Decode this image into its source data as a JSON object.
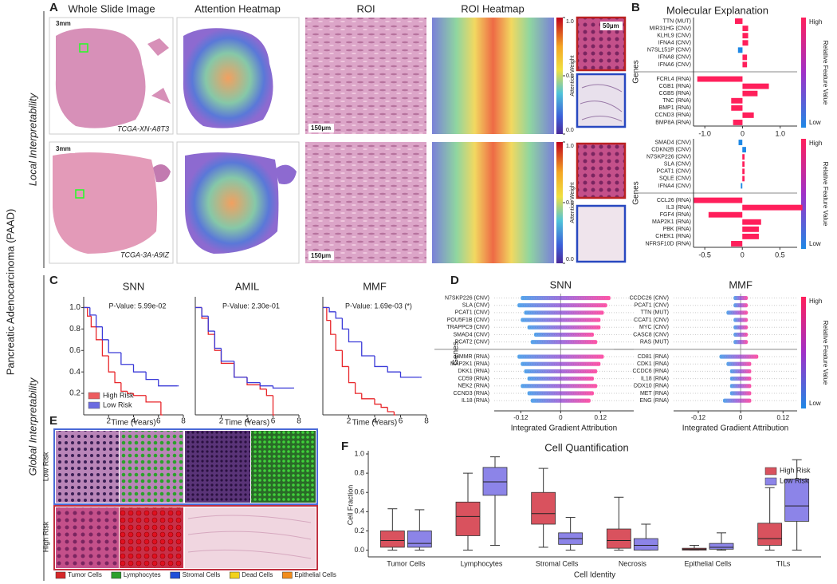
{
  "figure": {
    "side_title": "Pancreatic Adenocarcinoma (PAAD)",
    "local": "Local Interpretability",
    "global": "Global Interpretability",
    "panel_labels": [
      "A",
      "B",
      "C",
      "D",
      "E",
      "F"
    ],
    "a": {
      "columns": [
        "Whole Slide Image",
        "Attention Heatmap",
        "ROI",
        "ROI Heatmap"
      ],
      "scale_wsi": "3mm",
      "scale_roi": "150µm",
      "scale_zoom": "50µm",
      "samples": [
        "TCGA-XN-A8T3",
        "TCGA-3A-A9IZ"
      ],
      "colorbar_label": "Attention Weight",
      "colorbar_ticks": [
        {
          "value": 1,
          "label": "1.0"
        },
        {
          "value": 0.5,
          "label": "0.5"
        },
        {
          "value": 0,
          "label": "0.0"
        }
      ]
    },
    "b_title": "Molecular Explanation",
    "feature_legend": {
      "title": "Relative Feature Value",
      "high": "High",
      "low": "Low"
    },
    "genes_label": "Genes",
    "e": {
      "rows": [
        "Low Risk",
        "High Risk"
      ],
      "legend": [
        {
          "name": "Tumor Cells",
          "color": "#d62728"
        },
        {
          "name": "Lymphocytes",
          "color": "#2ca02c"
        },
        {
          "name": "Stromal Cells",
          "color": "#1f4fd8"
        },
        {
          "name": "Dead Cells",
          "color": "#f2d21b"
        },
        {
          "name": "Epithelial Cells",
          "color": "#f28c1b"
        }
      ]
    }
  },
  "chart_data": [
    {
      "type": "hbar",
      "categories": [
        "TTN (MUT)",
        "MIR31HG (CNV)",
        "KLHL9 (CNV)",
        "IFNA4 (CNV)",
        "N7SL151P (CNV)",
        "IFNA8 (CNV)",
        "IFNA6 (CNV)",
        "FCRL4 (RNA)",
        "CGB1 (RNA)",
        "CGB5 (RNA)",
        "TNC (RNA)",
        "BMP1 (RNA)",
        "CCND3 (RNA)",
        "BMP8A (RNA)"
      ],
      "values": [
        -0.2,
        0.15,
        0.15,
        0.15,
        -0.12,
        0.12,
        0.12,
        -1.2,
        0.7,
        0.4,
        -0.3,
        -0.3,
        0.3,
        -0.25
      ],
      "colors": [
        "#ff1f5b",
        "#ff1f5b",
        "#ff1f5b",
        "#ff1f5b",
        "#1e88e5",
        "#ff1f5b",
        "#ff1f5b",
        "#ff1f5b",
        "#ff1f5b",
        "#ff1f5b",
        "#ff1f5b",
        "#ff1f5b",
        "#ff1f5b",
        "#ff1f5b"
      ],
      "xlim": [
        -1.3,
        1.45
      ],
      "xticks": [
        {
          "value": -1,
          "label": "-1.0"
        },
        0,
        {
          "value": 1,
          "label": "1.0"
        }
      ]
    },
    {
      "type": "hbar",
      "categories": [
        "SMAD4 (CNV)",
        "CDKN2B (CNV)",
        "N7SKP226 (CNV)",
        "SLA (CNV)",
        "PCAT1 (CNV)",
        "SQLE (CNV)",
        "IFNA4 (CNV)",
        "CCL26 (RNA)",
        "IL3 (RNA)",
        "FGF4 (RNA)",
        "MAP2K1 (RNA)",
        "PBK (RNA)",
        "CHEK1 (RNA)",
        "NFRSF10D (RNA)"
      ],
      "values": [
        -0.05,
        0.05,
        0.03,
        0.03,
        0.03,
        0.03,
        -0.02,
        -0.65,
        0.8,
        -0.45,
        0.25,
        0.22,
        0.22,
        -0.15
      ],
      "colors": [
        "#1e88e5",
        "#1e88e5",
        "#ff1f5b",
        "#ff1f5b",
        "#ff1f5b",
        "#ff1f5b",
        "#1e88e5",
        "#ff1f5b",
        "#ff1f5b",
        "#ff1f5b",
        "#ff1f5b",
        "#ff1f5b",
        "#ff1f5b",
        "#ff1f5b"
      ],
      "xlim": [
        -0.65,
        0.73
      ],
      "xticks": [
        -0.5,
        0,
        0.5
      ]
    },
    {
      "type": "line",
      "title": "SNN",
      "annotation": "P-Value: 5.99e-02",
      "xlabel": "Time (Years)",
      "xlim": [
        0,
        8
      ],
      "ylim": [
        0,
        1.1
      ],
      "xticks": [
        2,
        4,
        6,
        8
      ],
      "yticks": [
        {
          "value": 0.2,
          "label": "0.2"
        },
        {
          "value": 0.4,
          "label": "0.4"
        },
        {
          "value": 0.6,
          "label": "0.6"
        },
        {
          "value": 0.8,
          "label": "0.8"
        },
        {
          "value": 1,
          "label": "1.0"
        }
      ],
      "series": [
        {
          "name": "High Risk",
          "color": "#e8262a",
          "x": [
            0,
            0.3,
            0.6,
            1,
            1.5,
            2,
            2.5,
            3,
            3.5,
            4,
            5,
            6.2
          ],
          "values": [
            1,
            0.92,
            0.82,
            0.7,
            0.55,
            0.4,
            0.3,
            0.22,
            0.2,
            0.18,
            0.12,
            0
          ]
        },
        {
          "name": "Low Risk",
          "color": "#3a3ad8",
          "x": [
            0,
            0.5,
            1,
            1.5,
            2,
            3,
            4,
            5,
            6,
            7.5
          ],
          "values": [
            1,
            0.93,
            0.82,
            0.7,
            0.58,
            0.47,
            0.4,
            0.33,
            0.27,
            0.27
          ]
        }
      ]
    },
    {
      "type": "line",
      "title": "AMIL",
      "annotation": "P-Value: 2.30e-01",
      "xlabel": "Time (Years)",
      "xlim": [
        0,
        8
      ],
      "ylim": [
        0,
        1.1
      ],
      "xticks": [
        2,
        4,
        6,
        8
      ],
      "series": [
        {
          "color": "#e8262a",
          "x": [
            0,
            0.5,
            1,
            1.5,
            2,
            3,
            4,
            5,
            5.5,
            6
          ],
          "values": [
            1,
            0.9,
            0.75,
            0.6,
            0.48,
            0.35,
            0.28,
            0.24,
            0.18,
            0
          ]
        },
        {
          "color": "#3a3ad8",
          "x": [
            0,
            0.5,
            1,
            1.5,
            2,
            3,
            4,
            5,
            6,
            7.5
          ],
          "values": [
            1,
            0.92,
            0.78,
            0.62,
            0.5,
            0.35,
            0.3,
            0.27,
            0.25,
            0.25
          ]
        }
      ]
    },
    {
      "type": "line",
      "title": "MMF",
      "annotation": "P-Value: 1.69e-03 (*)",
      "xlabel": "Time (Years)",
      "xlim": [
        0,
        8
      ],
      "ylim": [
        0,
        1.1
      ],
      "xticks": [
        2,
        4,
        6,
        8
      ],
      "series": [
        {
          "color": "#e8262a",
          "x": [
            0,
            0.3,
            0.6,
            1,
            1.5,
            2,
            2.5,
            3,
            4,
            4.5,
            5,
            5.5
          ],
          "values": [
            1,
            0.88,
            0.75,
            0.6,
            0.45,
            0.3,
            0.2,
            0.15,
            0.1,
            0.07,
            0.03,
            0
          ]
        },
        {
          "color": "#3a3ad8",
          "x": [
            0,
            0.5,
            1,
            1.5,
            2,
            3,
            4,
            5,
            6,
            7.5
          ],
          "values": [
            1,
            0.96,
            0.9,
            0.8,
            0.68,
            0.55,
            0.45,
            0.4,
            0.35,
            0.35
          ]
        }
      ]
    },
    {
      "type": "swarm",
      "title": "SNN",
      "xlabel": "Integrated Gradient Attribution",
      "categories": [
        "N7SKP226 (CNV)",
        "SLA (CNV)",
        "PCAT1 (CNV)",
        "POU5F1B (CNV)",
        "TRAPPC9 (CNV)",
        "SMAD4 (CNV)",
        "PCAT2 (CNV)",
        "HMMR (RNA)",
        "MAP2K1 (RNA)",
        "DKK1 (RNA)",
        "CD59 (RNA)",
        "NEK2 (RNA)",
        "CCND3 (RNA)",
        "IL18 (RNA)"
      ],
      "lows": [
        -0.12,
        -0.13,
        -0.11,
        -0.12,
        -0.1,
        -0.08,
        -0.09,
        -0.13,
        -0.12,
        -0.11,
        -0.1,
        -0.12,
        -0.1,
        -0.09
      ],
      "highs": [
        0.15,
        0.14,
        0.13,
        0.12,
        0.12,
        0.1,
        0.11,
        0.13,
        0.12,
        0.11,
        0.1,
        0.11,
        0.1,
        0.09
      ],
      "xlim": [
        -0.2,
        0.22
      ],
      "xticks": [
        -0.12,
        0,
        0.12
      ]
    },
    {
      "type": "swarm",
      "title": "MMF",
      "xlabel": "Integrated Gradient Attribution",
      "categories": [
        "CCDC26 (CNV)",
        "PCAT1 (CNV)",
        "TTN (MUT)",
        "CCAT1 (CNV)",
        "MYC (CNV)",
        "CASC8 (CNV)",
        "RAS (MUT)",
        "CD81 (RNA)",
        "CDK1 (RNA)",
        "CCDC6 (RNA)",
        "IL18 (RNA)",
        "DDX10 (RNA)",
        "MET (RNA)",
        "ENG (RNA)"
      ],
      "lows": [
        -0.02,
        -0.02,
        -0.04,
        -0.02,
        -0.02,
        -0.02,
        -0.02,
        -0.06,
        -0.04,
        -0.03,
        -0.03,
        -0.03,
        -0.03,
        -0.05
      ],
      "highs": [
        0.02,
        0.02,
        0.02,
        0.02,
        0.02,
        0.02,
        0.02,
        0.05,
        0.03,
        0.03,
        0.03,
        0.03,
        0.03,
        0.03
      ],
      "xlim": [
        -0.19,
        0.16
      ],
      "xticks": [
        -0.12,
        0,
        0.12
      ]
    },
    {
      "type": "box",
      "title": "Cell Quantification",
      "xlabel": "Cell Identity",
      "ylabel": "Cell Fraction",
      "categories": [
        "Tumor Cells",
        "Lymphocytes",
        "Stromal Cells",
        "Necrosis",
        "Epithelial Cells",
        "TILs"
      ],
      "ylim": [
        -0.07,
        1.0
      ],
      "yticks": [
        {
          "value": 0,
          "label": "0.0"
        },
        {
          "value": 0.2,
          "label": "0.2"
        },
        {
          "value": 0.4,
          "label": "0.4"
        },
        {
          "value": 0.6,
          "label": "0.6"
        },
        {
          "value": 0.8,
          "label": "0.8"
        },
        {
          "value": 1,
          "label": "1.0"
        }
      ],
      "legend": "upper right",
      "series": [
        {
          "name": "High Risk",
          "color": "#d9525e",
          "min": [
            0,
            0,
            0.03,
            0,
            0,
            0
          ],
          "q1": [
            0.03,
            0.15,
            0.27,
            0.02,
            0,
            0.05
          ],
          "median": [
            0.1,
            0.35,
            0.38,
            0.1,
            0.01,
            0.12
          ],
          "q3": [
            0.2,
            0.5,
            0.6,
            0.22,
            0.02,
            0.28
          ],
          "max": [
            0.43,
            0.8,
            0.85,
            0.55,
            0.05,
            0.65
          ]
        },
        {
          "name": "Low Risk",
          "color": "#8c84e8",
          "min": [
            0,
            0.05,
            0,
            0,
            0,
            0
          ],
          "q1": [
            0.03,
            0.57,
            0.06,
            0,
            0.01,
            0.3
          ],
          "median": [
            0.07,
            0.71,
            0.12,
            0.05,
            0.03,
            0.46
          ],
          "q3": [
            0.2,
            0.86,
            0.18,
            0.12,
            0.07,
            0.74
          ],
          "max": [
            0.42,
            0.97,
            0.34,
            0.27,
            0.18,
            0.94
          ]
        }
      ]
    }
  ]
}
